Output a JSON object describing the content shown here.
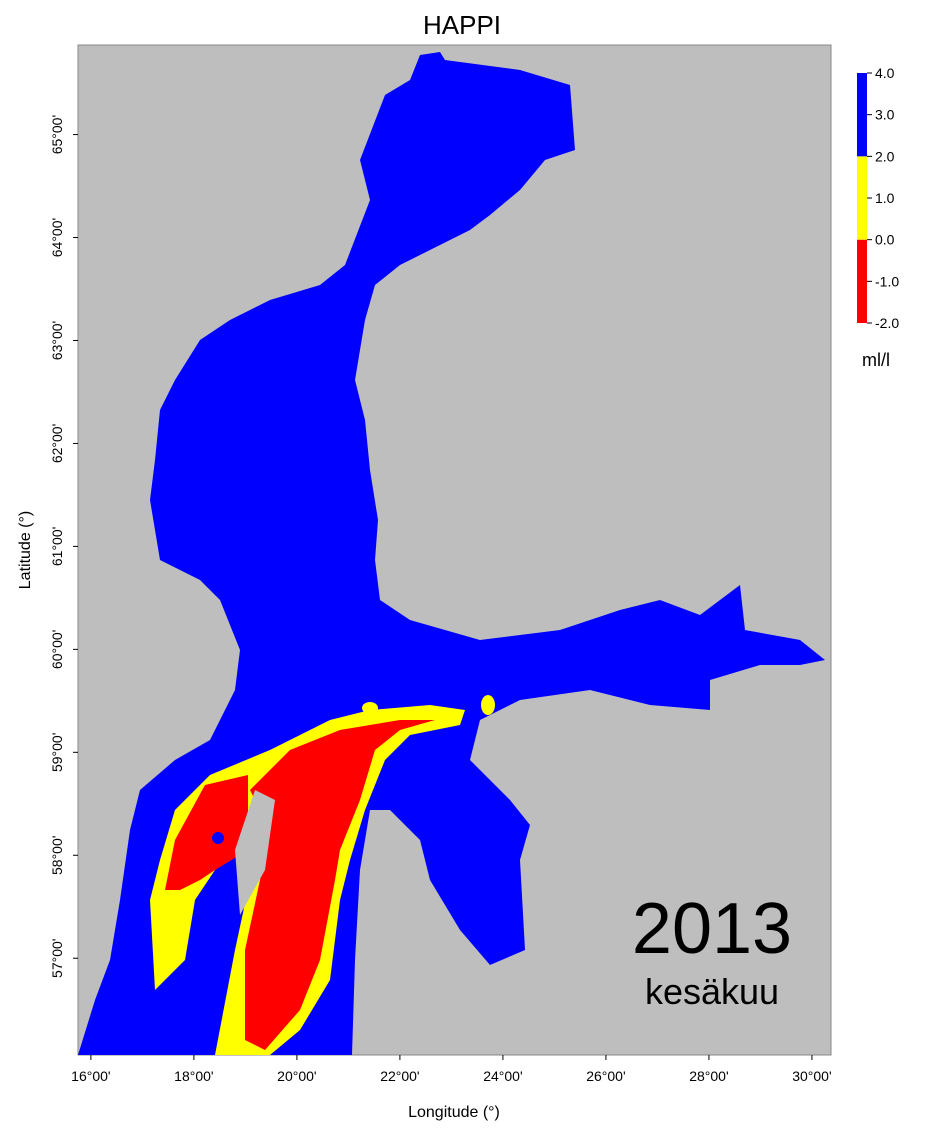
{
  "title": "HAPPI",
  "x_label": "Longitude (°)",
  "y_label": "Latitude (°)",
  "map": {
    "xlim": [
      15.75,
      30.37
    ],
    "ylim": [
      56.06,
      65.87
    ],
    "xticks": [
      {
        "value": 16,
        "label": "16°00'"
      },
      {
        "value": 18,
        "label": "18°00'"
      },
      {
        "value": 20,
        "label": "20°00'"
      },
      {
        "value": 22,
        "label": "22°00'"
      },
      {
        "value": 24,
        "label": "24°00'"
      },
      {
        "value": 26,
        "label": "26°00'"
      },
      {
        "value": 28,
        "label": "28°00'"
      },
      {
        "value": 30,
        "label": "30°00'"
      }
    ],
    "yticks": [
      {
        "value": 57,
        "label": "57°00'"
      },
      {
        "value": 58,
        "label": "58°00'"
      },
      {
        "value": 59,
        "label": "59°00'"
      },
      {
        "value": 60,
        "label": "60°00'"
      },
      {
        "value": 61,
        "label": "61°00'"
      },
      {
        "value": 62,
        "label": "62°00'"
      },
      {
        "value": 63,
        "label": "63°00'"
      },
      {
        "value": 64,
        "label": "64°00'"
      },
      {
        "value": 65,
        "label": "65°00'"
      }
    ]
  },
  "colorbar": {
    "range": [
      -2,
      4
    ],
    "ticks": [
      {
        "value": -2,
        "label": "-2.0"
      },
      {
        "value": -1,
        "label": "-1.0"
      },
      {
        "value": 0,
        "label": "0.0"
      },
      {
        "value": 1,
        "label": "1.0"
      },
      {
        "value": 2,
        "label": "2.0"
      },
      {
        "value": 3,
        "label": "3.0"
      },
      {
        "value": 4,
        "label": "4.0"
      }
    ],
    "bands": [
      {
        "from": -2,
        "to": 0,
        "color": "#ff0000"
      },
      {
        "from": 0,
        "to": 2,
        "color": "#ffff00"
      },
      {
        "from": 2,
        "to": 4,
        "color": "#0000ff"
      }
    ],
    "unit": "ml/l"
  },
  "annotations": {
    "year": "2013",
    "month": "kesäkuu"
  }
}
